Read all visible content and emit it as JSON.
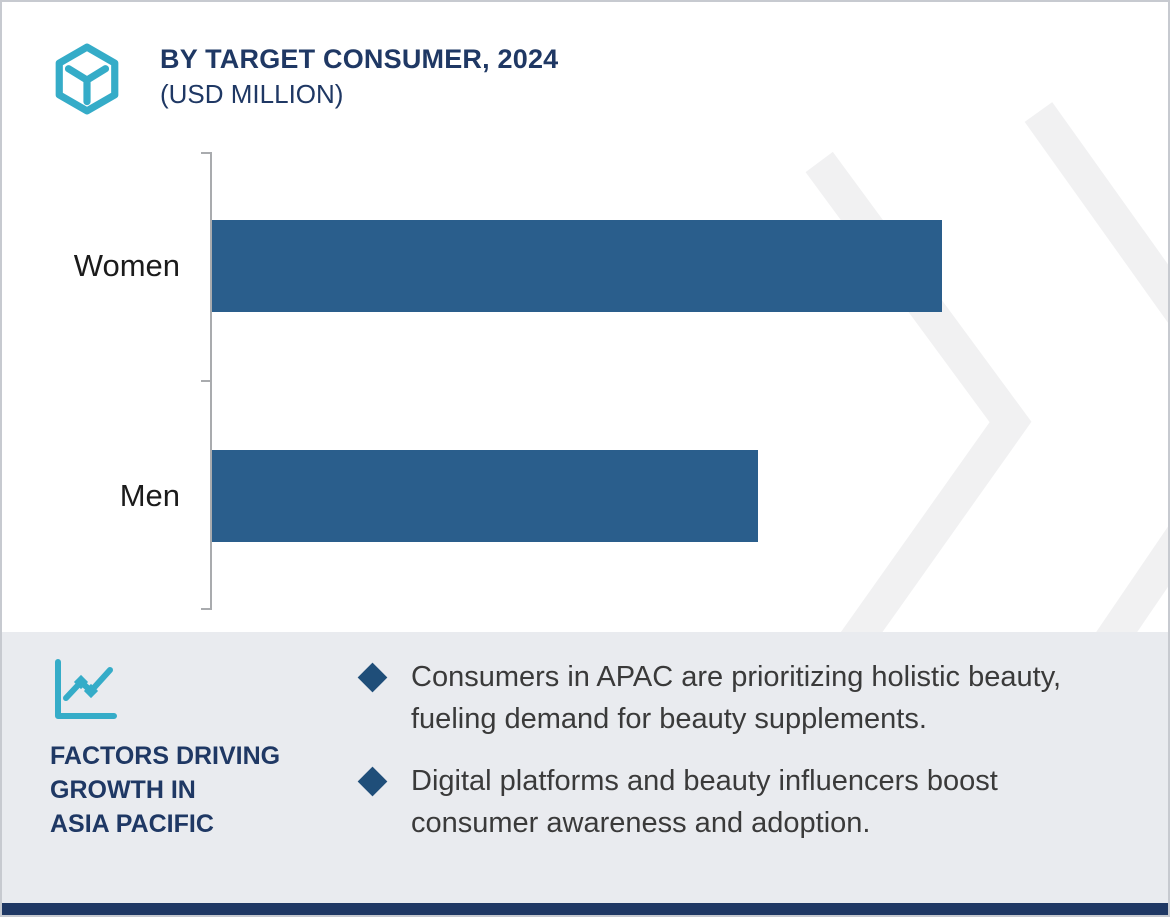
{
  "header": {
    "title": "BY TARGET CONSUMER, 2024",
    "subtitle": "(USD MILLION)",
    "logo_icon": "hexagon-logo-icon"
  },
  "chart_data": {
    "type": "bar",
    "orientation": "horizontal",
    "title": "BY TARGET CONSUMER, 2024",
    "unit_label": "(USD MILLION)",
    "categories": [
      "Women",
      "Men"
    ],
    "values": [
      100,
      74.8
    ],
    "values_note": "No numeric data labels are shown in the chart; values are relative bar lengths with Women = 100.",
    "axis_max": 128,
    "bar_color": "#2A5E8C",
    "gridlines": false,
    "value_labels_shown": false,
    "legend": null
  },
  "footer": {
    "icon": "trend-line-icon",
    "heading_lines": [
      "FACTORS DRIVING",
      "GROWTH IN",
      "ASIA PACIFIC"
    ],
    "bullets": [
      "Consumers in APAC are prioritizing holistic beauty, fueling demand for beauty supplements.",
      "Digital platforms and beauty influencers boost consumer awareness and adoption."
    ]
  },
  "colors": {
    "title_navy": "#1F3864",
    "bar_blue": "#2A5E8C",
    "bullet_diamond": "#1F4E79",
    "teal_accent": "#35ACC8",
    "footer_bg": "#E9EBEF",
    "watermark_gray": "#F1F1F2",
    "axis_gray": "#A9ABAE",
    "bottom_strip_navy": "#1F3864"
  }
}
